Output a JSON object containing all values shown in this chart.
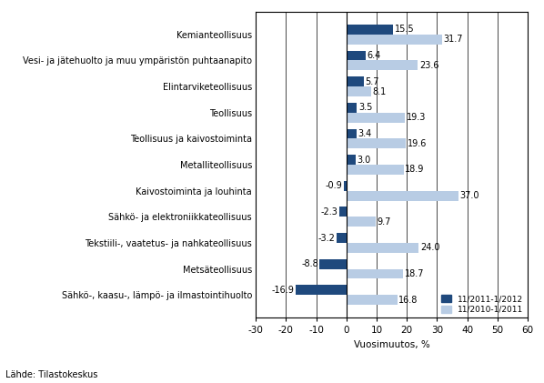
{
  "categories": [
    "Kemianteollisuus",
    "Vesi- ja jätehuolto ja muu ympäristön puhtaanapito",
    "Elintarviketeollisuus",
    "Teollisuus",
    "Teollisuus ja kaivostoiminta",
    "Metalliteollisuus",
    "Kaivostoiminta ja louhinta",
    "Sähkö- ja elektroniikkateollisuus",
    "Tekstiili-, vaatetus- ja nahkateollisuus",
    "Metsäteollisuus",
    "Sähkö-, kaasu-, lämpö- ja ilmastointihuolto"
  ],
  "series1_values": [
    15.5,
    6.4,
    5.7,
    3.5,
    3.4,
    3.0,
    -0.9,
    -2.3,
    -3.2,
    -8.8,
    -16.9
  ],
  "series2_values": [
    31.7,
    23.6,
    8.1,
    19.3,
    19.6,
    18.9,
    37.0,
    9.7,
    24.0,
    18.7,
    16.8
  ],
  "series1_color": "#1F497D",
  "series2_color": "#B8CCE4",
  "series1_label": "11/2011-1/2012",
  "series2_label": "11/2010-1/2011",
  "xlabel": "Vuosimuutos, %",
  "source": "Lähde: Tilastokeskus",
  "xlim": [
    -30,
    60
  ],
  "xticks": [
    -30,
    -20,
    -10,
    0,
    10,
    20,
    30,
    40,
    50,
    60
  ],
  "bar_height": 0.38,
  "background_color": "#ffffff",
  "label_fontsize": 7.0,
  "tick_fontsize": 7.5,
  "value_fontsize": 7.0
}
